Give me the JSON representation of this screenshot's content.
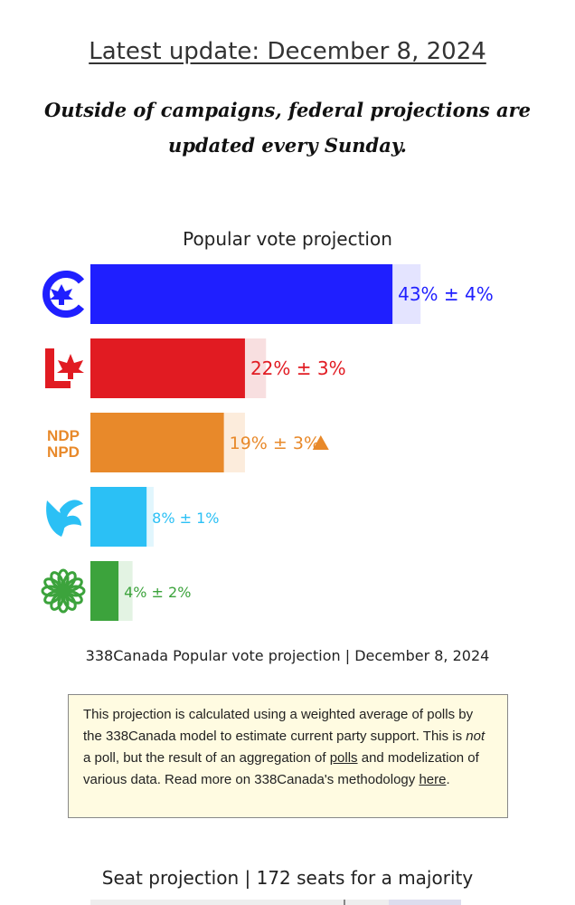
{
  "header": {
    "update_label": "Latest update: December 8, 2024",
    "note": "Outside of campaigns, federal projections are updated every Sunday."
  },
  "chart_data": {
    "type": "bar",
    "orientation": "horizontal",
    "title": "Popular vote projection",
    "caption": "338Canada Popular vote projection | December 8, 2024",
    "xlim": [
      0,
      50
    ],
    "grid": false,
    "legend": "none",
    "categories": [
      "CPC",
      "LPC",
      "NDP",
      "BQ",
      "GPC"
    ],
    "series": [
      {
        "values": [
          43,
          22,
          19,
          8,
          4
        ]
      }
    ],
    "margins": [
      4,
      3,
      3,
      1,
      2
    ],
    "labels": [
      "43% ± 4%",
      "22% ± 3%",
      "19% ± 3%",
      "8% ± 1%",
      "4% ± 2%"
    ],
    "trend": [
      "",
      "",
      "up",
      "",
      ""
    ],
    "colors": [
      "#1f1fff",
      "#e11b22",
      "#e8892a",
      "#2bc0f5",
      "#3ca33c"
    ],
    "margin_colors": [
      "#e4e4ff",
      "#f8dfe0",
      "#fcecdc",
      "#e1f6fd",
      "#e3f3e3"
    ],
    "icons": [
      "conservative-logo-icon",
      "liberal-logo-icon",
      "ndp-logo-icon",
      "bloc-logo-icon",
      "green-logo-icon"
    ],
    "ndp_logo_text": [
      "NDP",
      "NPD"
    ]
  },
  "infobox": {
    "text1": "This projection is calculated using a weighted average of polls by the 338Canada model to estimate current party support. This is ",
    "em": "not",
    "text2": " a poll, but the result of an aggregation of ",
    "link1": "polls",
    "text3": " and modelization of various data. Read more on 338Canada's methodology ",
    "link2": "here",
    "text4": "."
  },
  "seat_title": "Seat projection | 172 seats for a majority"
}
